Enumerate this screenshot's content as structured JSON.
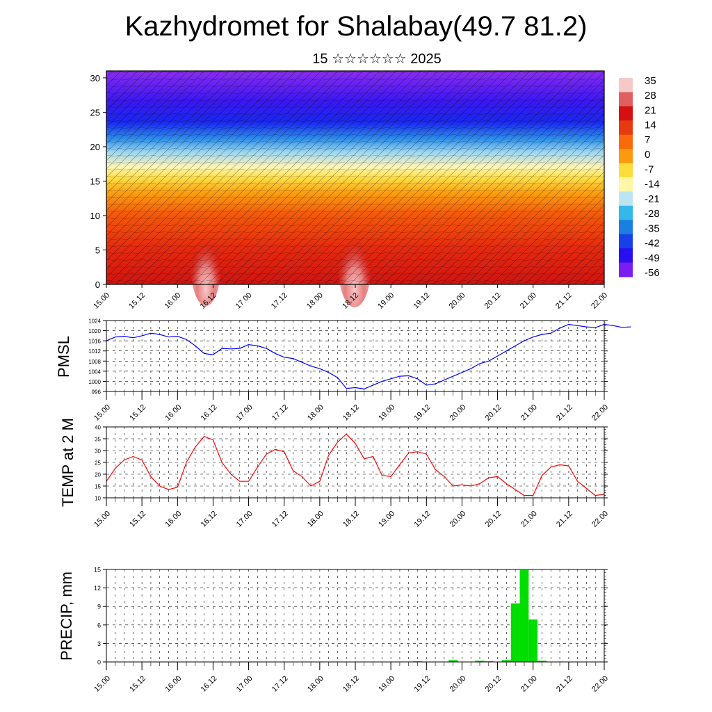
{
  "header": {
    "title": "Kazhydromet for Shalabay(49.7 81.2)",
    "subtitle": "15 ☆☆☆☆☆☆ 2025"
  },
  "time_ticks": [
    "15.00",
    "15.12",
    "16.00",
    "16.12",
    "17.00",
    "17.12",
    "18.00",
    "18.12",
    "19.00",
    "19.12",
    "20.00",
    "20.12",
    "21.00",
    "21.12",
    "22.00"
  ],
  "chart_data": [
    {
      "type": "heatmap",
      "name": "cross-section",
      "xlabel": "",
      "ylabel": "",
      "ylim": [
        0,
        31
      ],
      "yticks": [
        "0",
        "5",
        "10",
        "15",
        "20",
        "25",
        "30"
      ],
      "colorbar": {
        "labels": [
          "35",
          "28",
          "21",
          "14",
          "7",
          "0",
          "-7",
          "-14",
          "-21",
          "-28",
          "-35",
          "-42",
          "-49",
          "-56"
        ],
        "colors": [
          "#f6c9c9",
          "#e06060",
          "#d51010",
          "#e83a10",
          "#f86a0a",
          "#fb9a0d",
          "#fddc3c",
          "#fff7a6",
          "#bce4f1",
          "#33b8ea",
          "#1c7ee0",
          "#1840e8",
          "#2a10f0",
          "#7a1df0"
        ]
      },
      "layers": [
        {
          "level": 0,
          "band": "warm-surface"
        },
        {
          "level": 15,
          "band": "yellow"
        },
        {
          "level": 20,
          "band": "light-blue"
        },
        {
          "level": 25,
          "band": "deep-blue"
        },
        {
          "level": 31,
          "band": "violet"
        }
      ],
      "hot_spots_days": [
        16.12,
        18.12
      ]
    },
    {
      "type": "line",
      "ylabel": "PMSL",
      "ylim": [
        996,
        1024
      ],
      "yticks": [
        "996",
        "1000",
        "1004",
        "1008",
        "1012",
        "1016",
        "1020",
        "1024"
      ],
      "color": "#0000ff",
      "values": [
        1016,
        1017.5,
        1017.8,
        1017.2,
        1018,
        1019,
        1018.5,
        1017.5,
        1017.8,
        1016.5,
        1014,
        1011,
        1010.5,
        1013,
        1012.8,
        1013,
        1014.5,
        1014,
        1013,
        1011,
        1009.5,
        1009,
        1007.5,
        1006,
        1005,
        1003.5,
        1001.5,
        997.2,
        997.5,
        997,
        998.5,
        1000,
        1001,
        1002,
        1002.2,
        1001,
        998.5,
        999,
        1000.5,
        1002,
        1003.5,
        1005,
        1007,
        1008,
        1010,
        1012,
        1014,
        1016,
        1017.5,
        1018.5,
        1019,
        1021,
        1022.5,
        1022,
        1021.5,
        1021.2,
        1022.5,
        1022,
        1021.3,
        1021.5
      ],
      "x_start": 15.0,
      "x_step_days": 0.125
    },
    {
      "type": "line",
      "ylabel": "TEMP at 2 M",
      "ylim": [
        10,
        40
      ],
      "yticks": [
        "10",
        "15",
        "20",
        "25",
        "30",
        "35",
        "40"
      ],
      "color": "#ff0000",
      "values": [
        17,
        22.5,
        26,
        27.5,
        26,
        19,
        15,
        13.5,
        14.5,
        25,
        31.5,
        36,
        34.5,
        25,
        20,
        17,
        17,
        23,
        28.5,
        30.5,
        29.5,
        21.5,
        19,
        15,
        17,
        28,
        33.5,
        37,
        33,
        26.5,
        27.5,
        19.5,
        19,
        24,
        29,
        29.5,
        28.5,
        22,
        19,
        15,
        15.5,
        15,
        16,
        18.5,
        19,
        16,
        13.5,
        11,
        11,
        19.5,
        23,
        24,
        23.5,
        17,
        14,
        11,
        11.5
      ],
      "x_start": 15.0,
      "x_step_days": 0.125
    },
    {
      "type": "bar",
      "ylabel": "PRECIP, mm",
      "ylim": [
        0,
        15
      ],
      "yticks": [
        "0",
        "3",
        "6",
        "9",
        "12",
        "15"
      ],
      "color": "#00dd00",
      "values": [
        0,
        0,
        0,
        0,
        0,
        0,
        0,
        0,
        0,
        0,
        0,
        0,
        0,
        0,
        0,
        0,
        0,
        0,
        0,
        0,
        0,
        0,
        0,
        0,
        0,
        0,
        0,
        0,
        0,
        0,
        0,
        0,
        0,
        0,
        0,
        0.1,
        0,
        0,
        0,
        0.3,
        0,
        0,
        0.2,
        0.1,
        0,
        0.3,
        9.5,
        14.9,
        6.9,
        0.2,
        0,
        0,
        0,
        0,
        0,
        0,
        0
      ],
      "x_start": 15.0,
      "x_step_days": 0.125
    }
  ]
}
